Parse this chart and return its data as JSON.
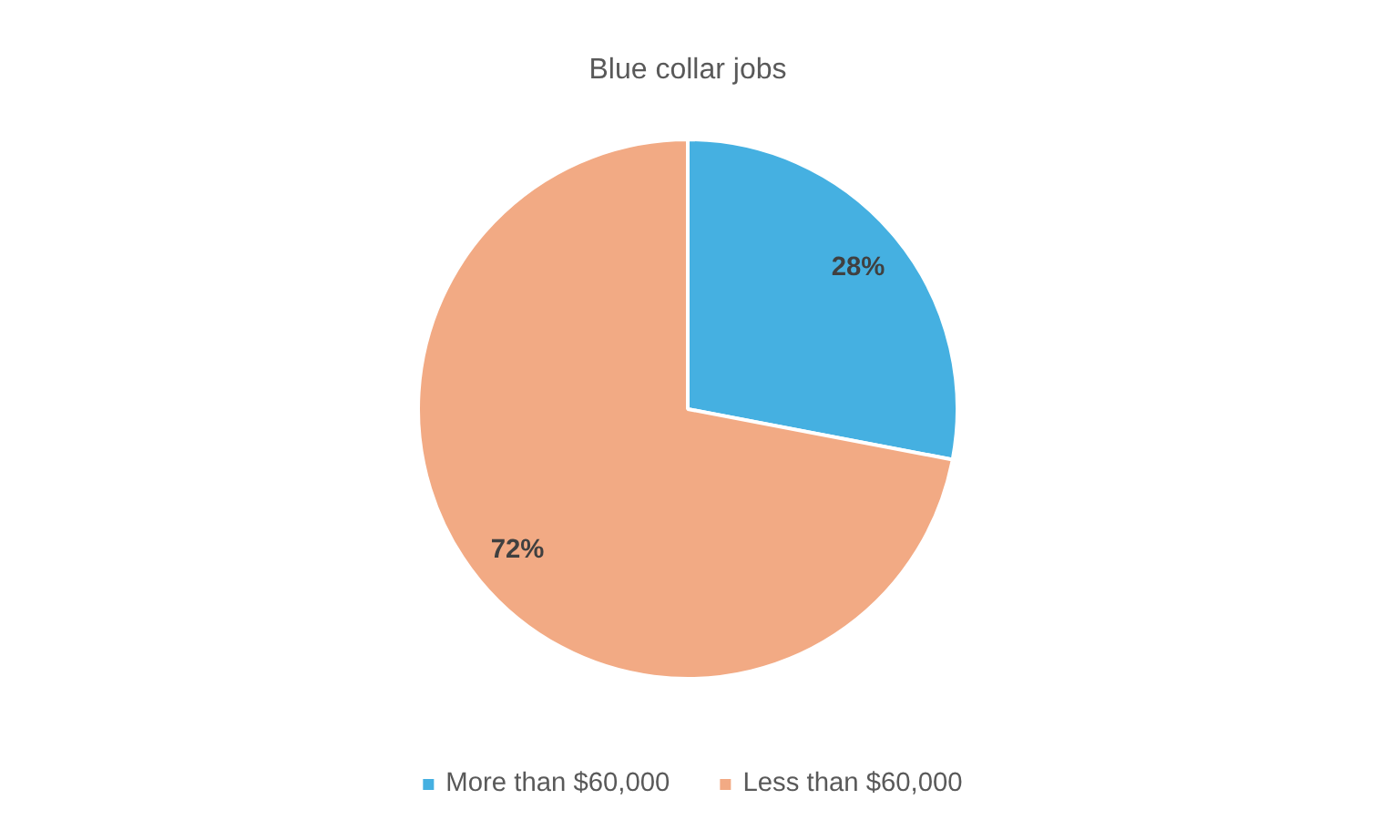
{
  "chart_data": {
    "type": "pie",
    "title": "Blue collar jobs",
    "categories": [
      "More than $60,000",
      "Less than $60,000"
    ],
    "values": [
      28,
      72
    ],
    "colors": [
      "#45b0e1",
      "#f2aa84"
    ],
    "value_labels": [
      "28%",
      "72%"
    ],
    "legend": "bottom"
  }
}
